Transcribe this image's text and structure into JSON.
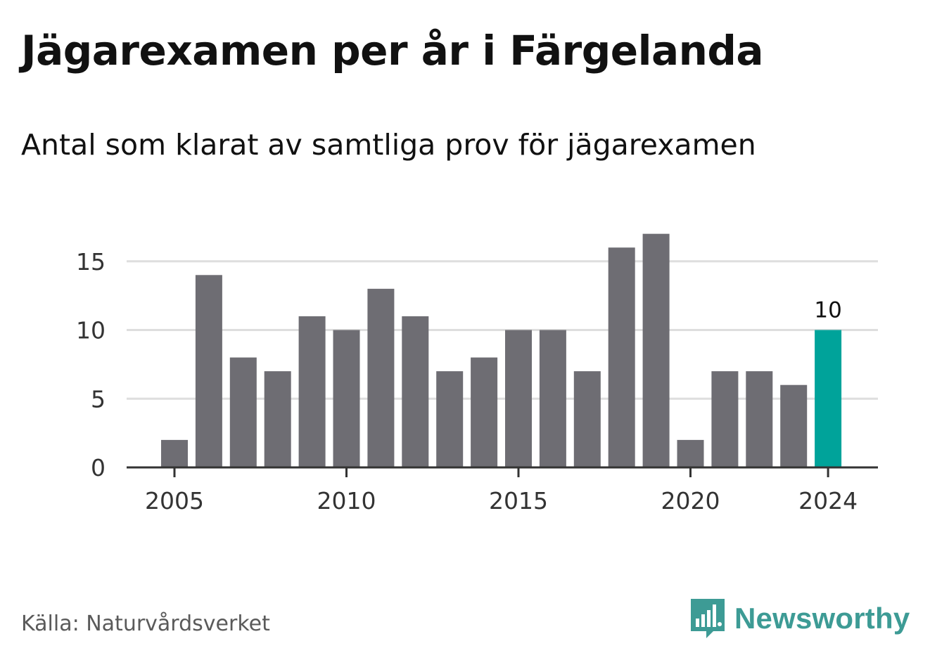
{
  "title": "Jägarexamen per år i Färgelanda",
  "subtitle": "Antal som klarat av samtliga prov för jägarexamen",
  "source": "Källa: Naturvårdsverket",
  "brand": {
    "name": "Newsworthy",
    "icon": "newsworthy-logo-icon",
    "color": "#3d9b95"
  },
  "chart_data": {
    "type": "bar",
    "categories": [
      "2005",
      "2006",
      "2007",
      "2008",
      "2009",
      "2010",
      "2011",
      "2012",
      "2013",
      "2014",
      "2015",
      "2016",
      "2017",
      "2018",
      "2019",
      "2020",
      "2021",
      "2022",
      "2023",
      "2024"
    ],
    "values": [
      2,
      14,
      8,
      7,
      11,
      10,
      13,
      11,
      7,
      8,
      10,
      10,
      7,
      16,
      17,
      2,
      7,
      7,
      6,
      10
    ],
    "x_tick_labels": [
      "2005",
      "2010",
      "2015",
      "2020",
      "2024"
    ],
    "y_ticks": [
      0,
      5,
      10,
      15
    ],
    "ylim": [
      0,
      17
    ],
    "grid": true,
    "xlabel": "",
    "ylabel": "",
    "bar_color": "#6e6d73",
    "highlight_color": "#00a39a",
    "highlight_category": "2024",
    "data_labels": [
      {
        "category": "2024",
        "text": "10"
      }
    ]
  }
}
